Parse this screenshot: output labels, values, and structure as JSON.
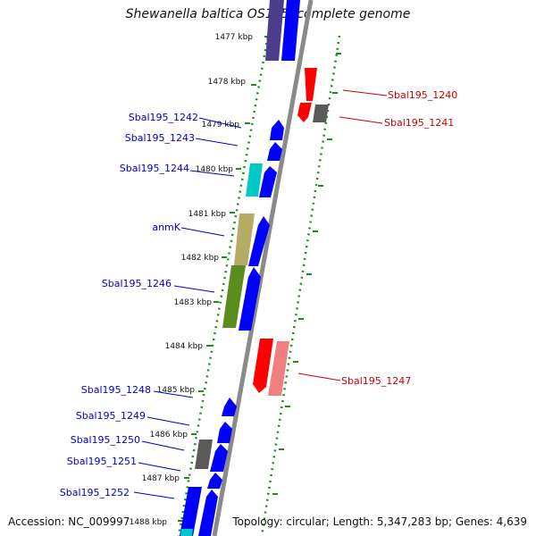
{
  "title": "Shewanella baltica OS195, complete genome",
  "accession": "Accession: NC_009997",
  "topology": "Topology: circular; Length: 5,347,283 bp; Genes: 4,639",
  "colors": {
    "blue": "#0000ff",
    "gray": "#5a5a5a",
    "cyan": "#00c8c8",
    "khaki": "#b4ac64",
    "olive": "#5a8c1e",
    "red": "#ff0000",
    "pink": "#f08080",
    "purple": "#4b3c8c",
    "backbone": "#888888",
    "tick": "#1e8c1e",
    "label_left": "#0000c8",
    "label_right": "#c80000"
  },
  "scale_labels": [
    "1477 kbp",
    "1478 kbp",
    "1479 kbp",
    "1480 kbp",
    "1481 kbp",
    "1482 kbp",
    "1483 kbp",
    "1484 kbp",
    "1485 kbp",
    "1486 kbp",
    "1487 kbp",
    "1488 kbp"
  ],
  "gene_labels_left": [
    "Sbal195_1242",
    "Sbal195_1243",
    "Sbal195_1244",
    "anmK",
    "Sbal195_1246",
    "Sbal195_1248",
    "Sbal195_1249",
    "Sbal195_1250",
    "Sbal195_1251",
    "Sbal195_1252"
  ],
  "gene_labels_right": [
    "Sbal195_1240",
    "Sbal195_1241",
    "Sbal195_1247"
  ]
}
